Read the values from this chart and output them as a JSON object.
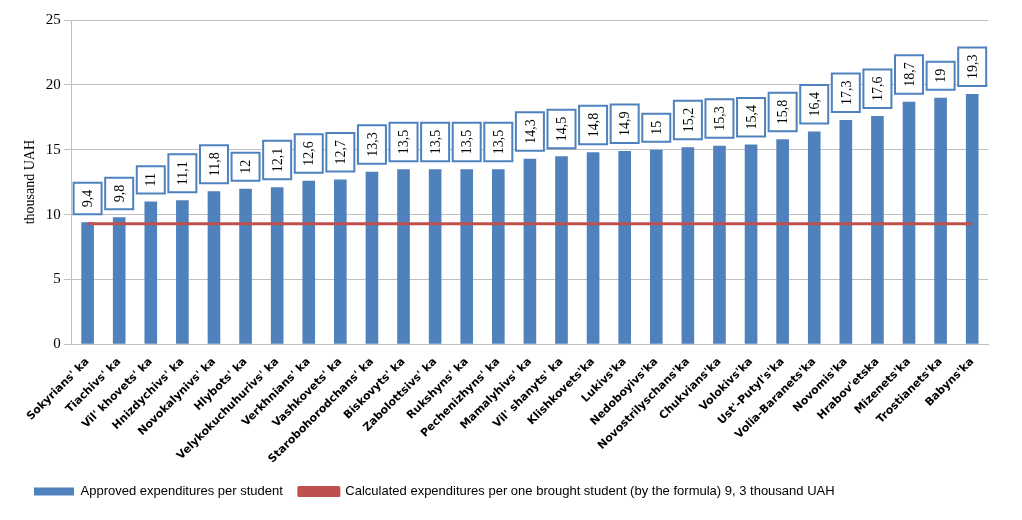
{
  "chart_data": {
    "type": "bar",
    "ylabel": "thousand UAH",
    "categories": [
      "Sokyrians' ka",
      "Tiachivs' ka",
      "Vil' khovets' ka",
      "Hnizdychivs' ka",
      "Novokalynivs' ka",
      "Hlybots' ka",
      "Velykokuchuhurivs' ka",
      "Verkhnians' ka",
      "Vashkovets' ka",
      "Starobohorodchans' ka",
      "Biskovyts' ka",
      "Zabolottsivs' ka",
      "Rukshyns' ka",
      "Pechenizhyns' ka",
      "Mamalyhivs' ka",
      "Vil' shanyts' ka",
      "Klishkovets'ka",
      "Lukivs'ka",
      "Nedoboyivs'ka",
      "Novostrilyschans'ka",
      "Chukvians'ka",
      "Volokivs'ka",
      "Ust'-Putyl's'ka",
      "Volia-Baranets'ka",
      "Novomis'ka",
      "Hrabov'etska",
      "Mizenets'ka",
      "Trostianets'ka",
      "Babyns'ka"
    ],
    "series": [
      {
        "name": "Approved expenditures per student",
        "color": "#4f81bd",
        "values": [
          9.4,
          9.8,
          11,
          11.1,
          11.8,
          12,
          12.1,
          12.6,
          12.7,
          13.3,
          13.5,
          13.5,
          13.5,
          13.5,
          14.3,
          14.5,
          14.8,
          14.9,
          15,
          15.2,
          15.3,
          15.4,
          15.8,
          16.4,
          17.3,
          17.6,
          18.7,
          19,
          19.3
        ],
        "value_labels": [
          "9,4",
          "9,8",
          "11",
          "11,1",
          "11,8",
          "12",
          "12,1",
          "12,6",
          "12,7",
          "13,3",
          "13,5",
          "13,5",
          "13,5",
          "13,5",
          "14,3",
          "14,5",
          "14,8",
          "14,9",
          "15",
          "15,2",
          "15,3",
          "15,4",
          "15,8",
          "16,4",
          "17,3",
          "17,6",
          "18,7",
          "19",
          "19,3"
        ]
      },
      {
        "name": "Calculated expenditures per one brought student (by the formula) 9, 3 thousand UAH",
        "type": "line",
        "color": "#c0504d",
        "values": [
          9.3,
          9.3,
          9.3,
          9.3,
          9.3,
          9.3,
          9.3,
          9.3,
          9.3,
          9.3,
          9.3,
          9.3,
          9.3,
          9.3,
          9.3,
          9.3,
          9.3,
          9.3,
          9.3,
          9.3,
          9.3,
          9.3,
          9.3,
          9.3,
          9.3,
          9.3,
          9.3,
          9.3,
          9.3
        ]
      }
    ],
    "ylim": [
      0,
      25
    ],
    "yticks": [
      0,
      5,
      10,
      15,
      20,
      25
    ],
    "grid": "y",
    "legend": "bottom",
    "marker": "none"
  }
}
